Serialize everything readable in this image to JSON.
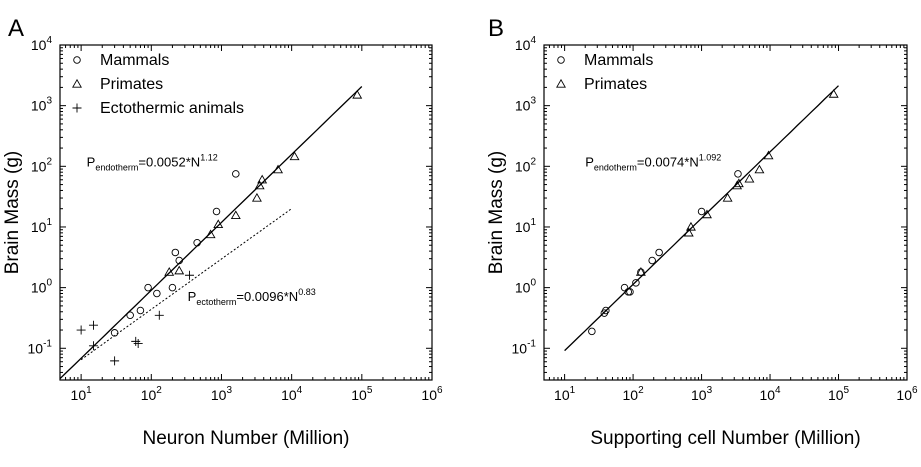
{
  "chart_data": [
    {
      "type": "scatter",
      "panel_label": "A",
      "xlabel": "Neuron Number (Million)",
      "ylabel": "Brain Mass (g)",
      "xscale": "log",
      "yscale": "log",
      "xlim": [
        5,
        1000000
      ],
      "ylim": [
        0.03,
        10000
      ],
      "x_ticks": [
        10,
        100,
        1000,
        10000,
        100000,
        1000000
      ],
      "y_ticks": [
        0.1,
        1,
        10,
        100,
        1000,
        10000
      ],
      "legend": {
        "placement": "top-left",
        "entries": [
          {
            "name": "Mammals",
            "marker": "circle"
          },
          {
            "name": "Primates",
            "marker": "triangle"
          },
          {
            "name": "Ectothermic animals",
            "marker": "plus"
          }
        ]
      },
      "series": [
        {
          "name": "Mammals",
          "marker": "circle",
          "points": [
            [
              30,
              0.18
            ],
            [
              50,
              0.35
            ],
            [
              70,
              0.42
            ],
            [
              90,
              1.0
            ],
            [
              120,
              0.8
            ],
            [
              200,
              1.0
            ],
            [
              220,
              3.8
            ],
            [
              250,
              2.8
            ],
            [
              450,
              5.5
            ],
            [
              850,
              18
            ],
            [
              1600,
              75
            ]
          ]
        },
        {
          "name": "Primates",
          "marker": "triangle",
          "points": [
            [
              180,
              1.8
            ],
            [
              250,
              1.9
            ],
            [
              700,
              7.5
            ],
            [
              900,
              11
            ],
            [
              1600,
              15.5
            ],
            [
              3200,
              30
            ],
            [
              3500,
              48
            ],
            [
              3800,
              60
            ],
            [
              6400,
              88
            ],
            [
              11000,
              145
            ],
            [
              86000,
              1500
            ]
          ]
        },
        {
          "name": "Ectothermic animals",
          "marker": "plus",
          "points": [
            [
              10,
              0.2
            ],
            [
              15,
              0.24
            ],
            [
              15,
              0.11
            ],
            [
              30,
              0.062
            ],
            [
              60,
              0.13
            ],
            [
              65,
              0.12
            ],
            [
              130,
              0.35
            ],
            [
              350,
              1.6
            ]
          ]
        }
      ],
      "fits": [
        {
          "style": "solid",
          "x_range": [
            5,
            100000
          ],
          "a": 0.0052,
          "b": 1.12
        },
        {
          "style": "dotted",
          "x_range": [
            10,
            10000
          ],
          "a": 0.0096,
          "b": 0.83
        }
      ],
      "annotations": [
        {
          "base": "P",
          "sub": "endotherm",
          "mid": "=0.0052*N",
          "sup": "1.12",
          "anchor": [
            12,
            100
          ]
        },
        {
          "base": "P",
          "sub": "ectotherm",
          "mid": "=0.0096*N",
          "sup": "0.83",
          "anchor": [
            330,
            0.6
          ]
        }
      ]
    },
    {
      "type": "scatter",
      "panel_label": "B",
      "xlabel": "Supporting cell Number (Million)",
      "ylabel": "Brain Mass (g)",
      "xscale": "log",
      "yscale": "log",
      "xlim": [
        5,
        1000000
      ],
      "ylim": [
        0.03,
        10000
      ],
      "x_ticks": [
        10,
        100,
        1000,
        10000,
        100000,
        1000000
      ],
      "y_ticks": [
        0.1,
        1,
        10,
        100,
        1000,
        10000
      ],
      "legend": {
        "placement": "top-left",
        "entries": [
          {
            "name": "Mammals",
            "marker": "circle"
          },
          {
            "name": "Primates",
            "marker": "triangle"
          }
        ]
      },
      "series": [
        {
          "name": "Mammals",
          "marker": "circle",
          "points": [
            [
              25,
              0.19
            ],
            [
              38,
              0.38
            ],
            [
              40,
              0.42
            ],
            [
              75,
              1.0
            ],
            [
              85,
              0.85
            ],
            [
              90,
              0.85
            ],
            [
              110,
              1.2
            ],
            [
              130,
              1.8
            ],
            [
              190,
              2.8
            ],
            [
              240,
              3.8
            ],
            [
              1000,
              18
            ],
            [
              3400,
              75
            ]
          ]
        },
        {
          "name": "Primates",
          "marker": "triangle",
          "points": [
            [
              130,
              1.8
            ],
            [
              650,
              8
            ],
            [
              700,
              10
            ],
            [
              1200,
              16
            ],
            [
              2400,
              30
            ],
            [
              3300,
              48
            ],
            [
              3500,
              52
            ],
            [
              5000,
              62
            ],
            [
              7000,
              88
            ],
            [
              9500,
              150
            ],
            [
              85000,
              1550
            ]
          ]
        }
      ],
      "fits": [
        {
          "style": "solid",
          "x_range": [
            10,
            100000
          ],
          "a": 0.0074,
          "b": 1.092
        }
      ],
      "annotations": [
        {
          "base": "P",
          "sub": "endotherm",
          "mid": "=0.0074*N",
          "sup": "1.092",
          "anchor": [
            20,
            100
          ]
        }
      ]
    }
  ]
}
